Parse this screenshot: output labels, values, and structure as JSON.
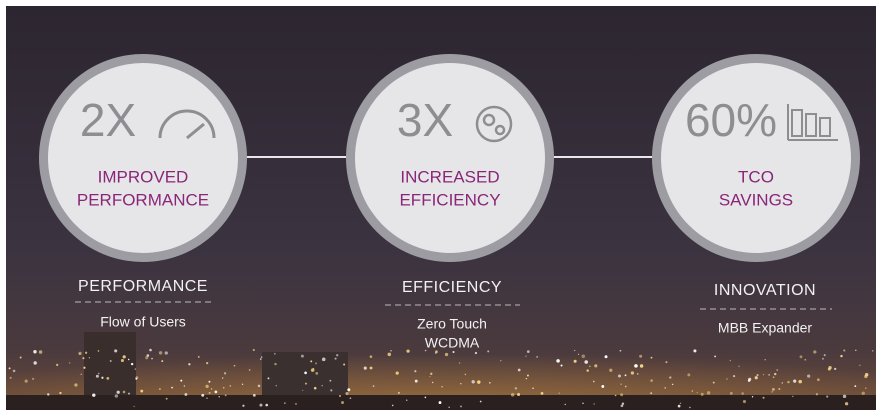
{
  "items": [
    {
      "big": "2X",
      "subtitle": [
        "IMPROVED",
        "PERFORMANCE"
      ],
      "label": "PERFORMANCE",
      "caption": [
        "Flow of Users"
      ]
    },
    {
      "big": "3X",
      "subtitle": [
        "INCREASED",
        "EFFICIENCY"
      ],
      "label": "EFFICIENCY",
      "caption": [
        "Zero Touch",
        "WCDMA"
      ]
    },
    {
      "big": "60%",
      "subtitle": [
        "TCO",
        "SAVINGS"
      ],
      "label": "INNOVATION",
      "caption": [
        "MBB Expander"
      ]
    }
  ]
}
